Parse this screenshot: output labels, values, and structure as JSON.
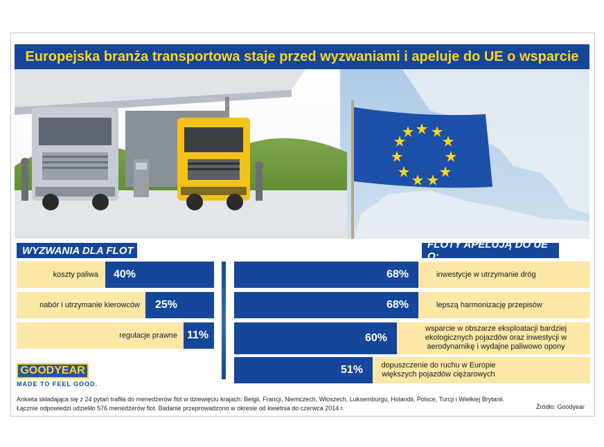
{
  "title": "Europejska branża transportowa staje przed wyzwaniami i apeluje do UE o wsparcie",
  "colors": {
    "navy": "#16469a",
    "yellow": "#ffd320",
    "cream": "#fbe7a6"
  },
  "left": {
    "heading": "WYZWANIA DLA FLOT",
    "items": [
      {
        "label": "koszty paliwa",
        "value": "40%"
      },
      {
        "label": "nabór i utrzymanie kierowców",
        "value": "25%"
      },
      {
        "label": "regulacje prawne",
        "value": "11%"
      }
    ]
  },
  "right": {
    "heading": "FLOTY APELUJĄ DO UE O:",
    "items": [
      {
        "value": "68%",
        "label": "inwestycje w utrzymanie dróg"
      },
      {
        "value": "68%",
        "label": "lepszą harmonizację przepisów"
      },
      {
        "value": "60%",
        "label": "wsparcie w obszarze eksploatacji bardziej ekologicznych pojazdów oraz inwestycji w aerodynamikę i wydajne paliwowo opony"
      },
      {
        "value": "51%",
        "label": "dopuszczenie do ruchu w Europie większych pojazdów ciężarowych"
      }
    ]
  },
  "logo": {
    "name": "GOODYEAR",
    "tagline": "MADE TO FEEL GOOD."
  },
  "footer": {
    "line1": "Ankieta składająca się z 24 pytań trafiła do menedżerów flot w dziewięciu krajach: Belgii, Francji, Niemczech, Włoszech, Luksemburgu, Holandii, Polsce, Turcji i Wielkiej Brytanii.",
    "line2": "Łącznie odpowiedzi udzieliło 576 menedżerów flot. Badanie przeprowadzono w okresie od kwietnia do czerwca 2014 r.",
    "source": "Źródło: Goodyear"
  }
}
